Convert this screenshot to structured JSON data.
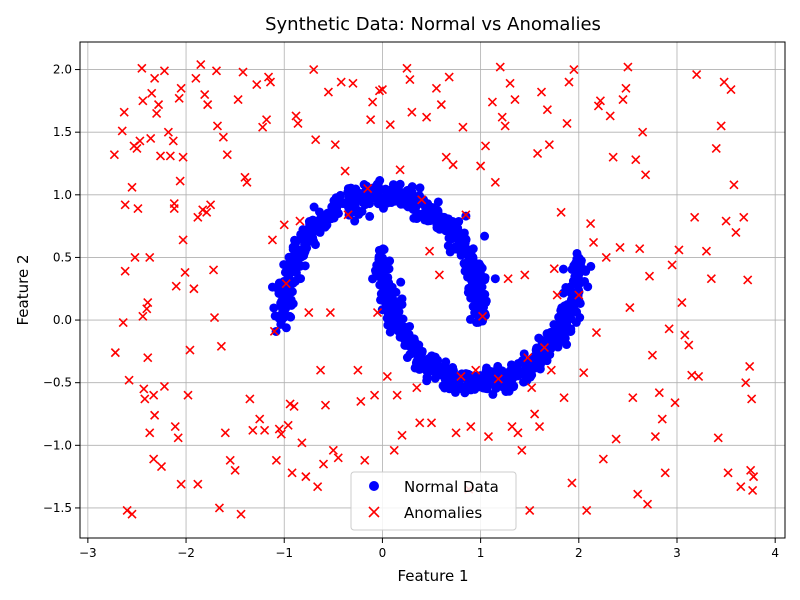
{
  "chart_data": {
    "type": "scatter",
    "title": "Synthetic Data: Normal vs Anomalies",
    "xlabel": "Feature 1",
    "ylabel": "Feature 2",
    "xlim": [
      -3.08,
      4.1
    ],
    "ylim": [
      -1.74,
      2.22
    ],
    "xticks": [
      -3,
      -2,
      -1,
      0,
      1,
      2,
      3,
      4
    ],
    "yticks": [
      -1.5,
      -1.0,
      -0.5,
      0.0,
      0.5,
      1.0,
      1.5,
      2.0
    ],
    "xtick_labels": [
      "−3",
      "−2",
      "−1",
      "0",
      "1",
      "2",
      "3",
      "4"
    ],
    "ytick_labels": [
      "−1.5",
      "−1.0",
      "−0.5",
      "0.0",
      "0.5",
      "1.0",
      "1.5",
      "2.0"
    ],
    "grid": true,
    "legend": {
      "position": "lower-center"
    },
    "series": [
      {
        "name": "Normal Data",
        "marker": "circle",
        "color": "#0000ff",
        "distribution": "two interleaving half-moons, noise about 0.05",
        "upper_moon": {
          "center": [
            0.0,
            0.0
          ],
          "radius": 1.0,
          "angle_deg": [
            0,
            180
          ]
        },
        "lower_moon": {
          "center": [
            1.0,
            0.5
          ],
          "radius": 1.0,
          "angle_deg": [
            180,
            360
          ]
        },
        "outliers": [
          [
            1.04,
            0.67
          ],
          [
            1.15,
            0.33
          ],
          [
            0.85,
            0.83
          ]
        ]
      },
      {
        "name": "Anomalies",
        "marker": "x",
        "color": "#ff0000",
        "distribution": "uniform",
        "x_range": [
          -2.75,
          3.78
        ],
        "y_range": [
          -1.55,
          2.04
        ],
        "points": [
          [
            -2.72,
            -0.26
          ],
          [
            -2.73,
            1.32
          ],
          [
            -2.65,
            1.51
          ],
          [
            -2.63,
            1.66
          ],
          [
            -2.62,
            0.92
          ],
          [
            -2.62,
            0.39
          ],
          [
            -2.64,
            -0.02
          ],
          [
            -2.58,
            -0.48
          ],
          [
            -2.6,
            -1.52
          ],
          [
            -2.55,
            -1.55
          ],
          [
            -2.55,
            1.06
          ],
          [
            -2.53,
            1.39
          ],
          [
            -2.52,
            0.5
          ],
          [
            -2.5,
            1.37
          ],
          [
            -2.49,
            0.89
          ],
          [
            -2.47,
            1.43
          ],
          [
            -2.45,
            2.01
          ],
          [
            -2.44,
            0.03
          ],
          [
            -2.44,
            1.75
          ],
          [
            -2.43,
            -0.55
          ],
          [
            -2.42,
            -0.63
          ],
          [
            -2.4,
            0.09
          ],
          [
            -2.39,
            0.14
          ],
          [
            -2.39,
            -0.3
          ],
          [
            -2.37,
            0.5
          ],
          [
            -2.37,
            -0.9
          ],
          [
            -2.36,
            1.45
          ],
          [
            -2.35,
            1.81
          ],
          [
            -2.33,
            -0.6
          ],
          [
            -2.33,
            -1.11
          ],
          [
            -2.32,
            1.93
          ],
          [
            -2.32,
            -0.76
          ],
          [
            -2.3,
            1.65
          ],
          [
            -2.28,
            1.72
          ],
          [
            -2.26,
            1.31
          ],
          [
            -2.25,
            -1.17
          ],
          [
            -2.22,
            -0.53
          ],
          [
            -2.22,
            1.99
          ],
          [
            -2.18,
            1.5
          ],
          [
            -2.16,
            1.31
          ],
          [
            -2.13,
            1.43
          ],
          [
            -2.12,
            0.93
          ],
          [
            -2.12,
            0.89
          ],
          [
            -2.11,
            -0.85
          ],
          [
            -2.1,
            0.27
          ],
          [
            -2.08,
            -0.94
          ],
          [
            -2.07,
            1.77
          ],
          [
            -2.06,
            1.11
          ],
          [
            -2.05,
            1.85
          ],
          [
            -2.05,
            -1.31
          ],
          [
            -2.03,
            0.64
          ],
          [
            -2.03,
            1.3
          ],
          [
            -2.01,
            0.38
          ],
          [
            -1.98,
            -0.6
          ],
          [
            -1.96,
            -0.24
          ],
          [
            -1.92,
            0.25
          ],
          [
            -1.9,
            1.93
          ],
          [
            -1.88,
            -1.31
          ],
          [
            -1.88,
            0.82
          ],
          [
            -1.85,
            2.04
          ],
          [
            -1.83,
            0.88
          ],
          [
            -1.81,
            1.8
          ],
          [
            -1.79,
            0.86
          ],
          [
            -1.78,
            1.72
          ],
          [
            -1.75,
            0.92
          ],
          [
            -1.72,
            0.4
          ],
          [
            -1.71,
            0.02
          ],
          [
            -1.69,
            1.99
          ],
          [
            -1.68,
            1.55
          ],
          [
            -1.66,
            -1.5
          ],
          [
            -1.64,
            -0.21
          ],
          [
            -1.62,
            1.46
          ],
          [
            -1.6,
            -0.9
          ],
          [
            -1.58,
            1.32
          ],
          [
            -1.55,
            -1.12
          ],
          [
            -1.5,
            -1.2
          ],
          [
            -1.47,
            1.76
          ],
          [
            -1.44,
            -1.55
          ],
          [
            -1.42,
            1.98
          ],
          [
            -1.4,
            1.14
          ],
          [
            -1.38,
            1.1
          ],
          [
            -1.35,
            -0.63
          ],
          [
            -1.32,
            -0.88
          ],
          [
            -1.28,
            1.88
          ],
          [
            -1.25,
            -0.79
          ],
          [
            -1.22,
            1.54
          ],
          [
            -1.2,
            -0.88
          ],
          [
            -1.18,
            1.6
          ],
          [
            -1.16,
            1.94
          ],
          [
            -1.14,
            1.9
          ],
          [
            -1.12,
            0.64
          ],
          [
            -1.1,
            -0.09
          ],
          [
            -1.08,
            -1.12
          ],
          [
            -1.05,
            -0.87
          ],
          [
            -1.03,
            -0.91
          ],
          [
            -1.0,
            0.76
          ],
          [
            -0.98,
            0.29
          ],
          [
            -0.96,
            -0.84
          ],
          [
            -0.94,
            -0.67
          ],
          [
            -0.92,
            -1.22
          ],
          [
            -0.9,
            -0.69
          ],
          [
            -0.88,
            1.63
          ],
          [
            -0.86,
            1.57
          ],
          [
            -0.84,
            0.79
          ],
          [
            -0.82,
            -0.98
          ],
          [
            -0.78,
            -1.25
          ],
          [
            -0.75,
            0.06
          ],
          [
            -0.7,
            2.0
          ],
          [
            -0.68,
            1.44
          ],
          [
            -0.66,
            -1.33
          ],
          [
            -0.63,
            -0.4
          ],
          [
            -0.6,
            -1.15
          ],
          [
            -0.58,
            -0.68
          ],
          [
            -0.55,
            1.82
          ],
          [
            -0.53,
            0.06
          ],
          [
            -0.5,
            -1.04
          ],
          [
            -0.48,
            1.4
          ],
          [
            -0.45,
            -1.1
          ],
          [
            -0.42,
            1.9
          ],
          [
            -0.38,
            1.19
          ],
          [
            -0.35,
            0.84
          ],
          [
            -0.3,
            1.89
          ],
          [
            -0.25,
            -0.4
          ],
          [
            -0.22,
            -0.65
          ],
          [
            -0.18,
            -1.12
          ],
          [
            -0.15,
            1.05
          ],
          [
            -0.12,
            1.6
          ],
          [
            -0.1,
            1.74
          ],
          [
            -0.08,
            -0.6
          ],
          [
            -0.05,
            0.06
          ],
          [
            -0.03,
            1.83
          ],
          [
            0.0,
            1.84
          ],
          [
            0.05,
            -0.45
          ],
          [
            0.08,
            1.56
          ],
          [
            0.12,
            -1.04
          ],
          [
            0.15,
            -0.6
          ],
          [
            0.18,
            1.2
          ],
          [
            0.2,
            -0.92
          ],
          [
            0.25,
            2.01
          ],
          [
            0.28,
            1.92
          ],
          [
            0.3,
            1.66
          ],
          [
            0.35,
            -0.54
          ],
          [
            0.38,
            -0.82
          ],
          [
            0.4,
            0.96
          ],
          [
            0.45,
            1.62
          ],
          [
            0.48,
            0.55
          ],
          [
            0.5,
            -0.82
          ],
          [
            0.55,
            1.85
          ],
          [
            0.58,
            0.36
          ],
          [
            0.6,
            1.72
          ],
          [
            0.65,
            1.3
          ],
          [
            0.68,
            1.94
          ],
          [
            0.72,
            1.24
          ],
          [
            0.75,
            -0.9
          ],
          [
            0.8,
            -0.45
          ],
          [
            0.82,
            1.54
          ],
          [
            0.85,
            0.84
          ],
          [
            0.88,
            -1.35
          ],
          [
            0.9,
            -0.85
          ],
          [
            0.95,
            -0.4
          ],
          [
            1.0,
            1.23
          ],
          [
            1.02,
            0.03
          ],
          [
            1.05,
            1.39
          ],
          [
            1.08,
            -0.93
          ],
          [
            1.12,
            1.74
          ],
          [
            1.15,
            1.1
          ],
          [
            1.18,
            -0.47
          ],
          [
            1.2,
            2.02
          ],
          [
            1.22,
            1.62
          ],
          [
            1.25,
            1.55
          ],
          [
            1.28,
            0.33
          ],
          [
            1.3,
            1.89
          ],
          [
            1.32,
            -0.85
          ],
          [
            1.35,
            1.76
          ],
          [
            1.38,
            -0.9
          ],
          [
            1.42,
            -1.04
          ],
          [
            1.45,
            0.36
          ],
          [
            1.48,
            -0.3
          ],
          [
            1.5,
            -1.52
          ],
          [
            1.52,
            -0.54
          ],
          [
            1.55,
            -0.75
          ],
          [
            1.58,
            1.33
          ],
          [
            1.6,
            -0.85
          ],
          [
            1.62,
            1.82
          ],
          [
            1.65,
            -0.22
          ],
          [
            1.68,
            1.68
          ],
          [
            1.7,
            1.4
          ],
          [
            1.72,
            -0.4
          ],
          [
            1.75,
            0.41
          ],
          [
            1.78,
            0.2
          ],
          [
            1.82,
            0.86
          ],
          [
            1.85,
            -0.62
          ],
          [
            1.88,
            1.57
          ],
          [
            1.9,
            1.9
          ],
          [
            1.93,
            -1.3
          ],
          [
            1.95,
            2.0
          ],
          [
            2.0,
            0.2
          ],
          [
            2.05,
            -0.42
          ],
          [
            2.08,
            -1.52
          ],
          [
            2.12,
            0.77
          ],
          [
            2.15,
            0.62
          ],
          [
            2.18,
            -0.1
          ],
          [
            2.2,
            1.71
          ],
          [
            2.22,
            1.75
          ],
          [
            2.25,
            -1.11
          ],
          [
            2.28,
            0.5
          ],
          [
            2.32,
            1.63
          ],
          [
            2.35,
            1.3
          ],
          [
            2.38,
            -0.95
          ],
          [
            2.42,
            0.58
          ],
          [
            2.45,
            1.76
          ],
          [
            2.48,
            1.85
          ],
          [
            2.5,
            2.02
          ],
          [
            2.52,
            0.1
          ],
          [
            2.55,
            -0.62
          ],
          [
            2.58,
            1.28
          ],
          [
            2.6,
            -1.39
          ],
          [
            2.62,
            0.57
          ],
          [
            2.65,
            1.5
          ],
          [
            2.68,
            1.16
          ],
          [
            2.7,
            -1.47
          ],
          [
            2.72,
            0.35
          ],
          [
            2.75,
            -0.28
          ],
          [
            2.78,
            -0.93
          ],
          [
            2.82,
            -0.58
          ],
          [
            2.85,
            -0.79
          ],
          [
            2.88,
            -1.22
          ],
          [
            2.92,
            -0.07
          ],
          [
            2.95,
            0.44
          ],
          [
            2.98,
            -0.66
          ],
          [
            3.02,
            0.56
          ],
          [
            3.05,
            0.14
          ],
          [
            3.08,
            -0.12
          ],
          [
            3.12,
            -0.2
          ],
          [
            3.15,
            -0.44
          ],
          [
            3.18,
            0.82
          ],
          [
            3.2,
            1.96
          ],
          [
            3.22,
            -0.45
          ],
          [
            3.3,
            0.55
          ],
          [
            3.35,
            0.33
          ],
          [
            3.4,
            1.37
          ],
          [
            3.42,
            -0.94
          ],
          [
            3.45,
            1.55
          ],
          [
            3.48,
            1.9
          ],
          [
            3.5,
            0.79
          ],
          [
            3.52,
            -1.22
          ],
          [
            3.55,
            1.84
          ],
          [
            3.58,
            1.08
          ],
          [
            3.6,
            0.7
          ],
          [
            3.65,
            -1.33
          ],
          [
            3.68,
            0.82
          ],
          [
            3.7,
            -0.5
          ],
          [
            3.72,
            0.32
          ],
          [
            3.74,
            -0.37
          ],
          [
            3.75,
            -1.2
          ],
          [
            3.76,
            -0.63
          ],
          [
            3.77,
            -1.36
          ],
          [
            3.78,
            -1.25
          ]
        ]
      }
    ]
  }
}
